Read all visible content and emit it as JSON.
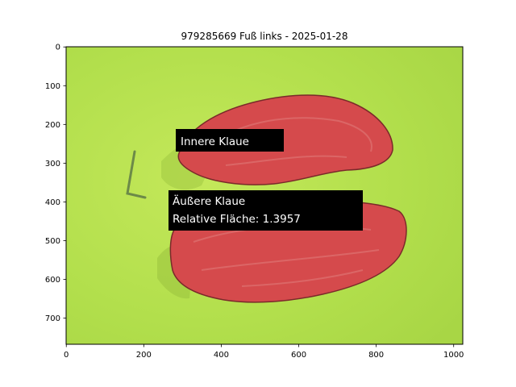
{
  "figure": {
    "title": "979285669 Fuß links - 2025-01-28",
    "image_size": [
      1024,
      768
    ],
    "x_ticks": [
      "0",
      "200",
      "400",
      "600",
      "800",
      "1000"
    ],
    "y_ticks": [
      "0",
      "100",
      "200",
      "300",
      "400",
      "500",
      "600",
      "700"
    ],
    "annotations": {
      "inner": {
        "line1": "Innere Klaue"
      },
      "outer": {
        "line1": "Äußere Klaue",
        "line2": "Relative Fläche: 1.3957"
      }
    },
    "colors": {
      "background": "#b4e04c",
      "mask": "#d94a4e",
      "label_box": "#000000"
    },
    "image_content": "Cross-section of two claws on green background, highlighted in red"
  }
}
